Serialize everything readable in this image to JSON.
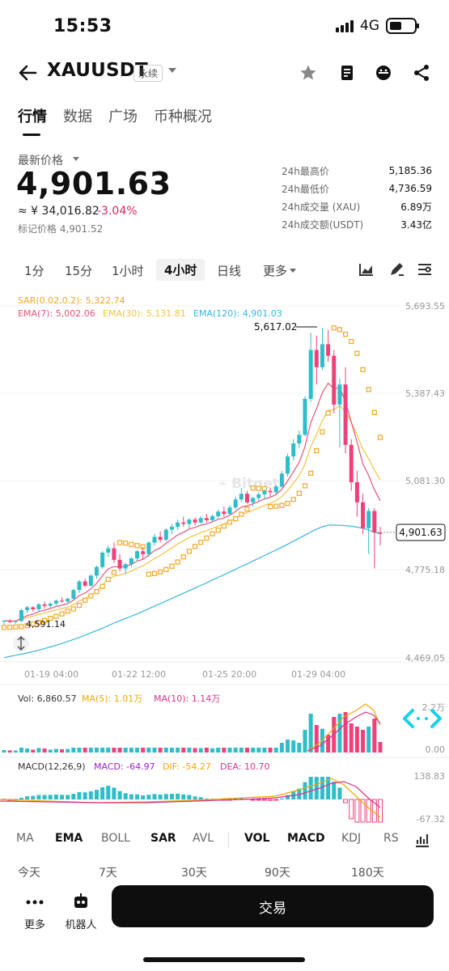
{
  "status": {
    "time": "15:53",
    "network": "4G"
  },
  "header": {
    "symbol": "XAUUSDT",
    "badge": "永续"
  },
  "tabs": [
    "行情",
    "数据",
    "广场",
    "币种概况"
  ],
  "ticker": {
    "label": "最新价格",
    "price": "4,901.63",
    "cny": "≈ ¥ 34,016.82",
    "change": "-3.04%",
    "mark": "标记价格 4,901.52",
    "stats": [
      {
        "k": "24h最高价",
        "v": "5,185.36"
      },
      {
        "k": "24h最低价",
        "v": "4,736.59"
      },
      {
        "k": "24h成交量 (XAU)",
        "v": "6.89万"
      },
      {
        "k": "24h成交额(USDT)",
        "v": "3.43亿"
      }
    ]
  },
  "intervals": [
    "1分",
    "15分",
    "1小时",
    "4小时",
    "日线",
    "更多"
  ],
  "chart": {
    "sar_label": "SAR(0.02,0.2): 5,322.74",
    "ema7_label": "EMA(7): 5,002.06",
    "ema30_label": "EMA(30): 5,131.81",
    "ema120_label": "EMA(120): 4,901.03",
    "high_marker": "5,617.02",
    "low_marker": "4,591.14",
    "current_tag": "4,901.63",
    "y_ticks": [
      "5,693.55",
      "5,387.43",
      "5,081.30",
      "4,775.18",
      "4,469.05"
    ],
    "x_ticks": [
      "01-19 04:00",
      "01-22 12:00",
      "01-25 20:00",
      "01-29 04:00"
    ],
    "vol_label": "Vol: 6,860.57",
    "vol_ma5": "MA(5): 1.01万",
    "vol_ma10": "MA(10): 1.14万",
    "vol_ticks": [
      "2.2万",
      "0.00"
    ],
    "macd_label": "MACD(12,26,9)",
    "macd_val": "MACD: -64.97",
    "dif_val": "DIF: -54.27",
    "dea_val": "DEA: 10.70",
    "macd_ticks": [
      "138.83",
      "-67.32"
    ],
    "colors": {
      "up": "#2ebdc9",
      "down": "#f0407a",
      "sar": "#f5a623",
      "ema7": "#e8547a",
      "ema30": "#f5c242",
      "ema120": "#35b6e0"
    }
  },
  "chart_data": {
    "type": "candlestick",
    "y_range": [
      4469.05,
      5693.55
    ],
    "candles": [
      [
        4595,
        4600,
        4585,
        4598
      ],
      [
        4598,
        4603,
        4590,
        4594
      ],
      [
        4594,
        4600,
        4588,
        4597
      ],
      [
        4597,
        4640,
        4594,
        4635
      ],
      [
        4635,
        4650,
        4625,
        4645
      ],
      [
        4645,
        4648,
        4630,
        4638
      ],
      [
        4638,
        4660,
        4632,
        4655
      ],
      [
        4655,
        4665,
        4640,
        4650
      ],
      [
        4650,
        4662,
        4644,
        4658
      ],
      [
        4658,
        4672,
        4650,
        4668
      ],
      [
        4668,
        4680,
        4660,
        4665
      ],
      [
        4665,
        4678,
        4656,
        4675
      ],
      [
        4675,
        4710,
        4670,
        4705
      ],
      [
        4705,
        4740,
        4695,
        4735
      ],
      [
        4735,
        4745,
        4715,
        4720
      ],
      [
        4720,
        4760,
        4718,
        4755
      ],
      [
        4755,
        4790,
        4745,
        4785
      ],
      [
        4785,
        4840,
        4780,
        4835
      ],
      [
        4835,
        4860,
        4820,
        4850
      ],
      [
        4850,
        4870,
        4800,
        4810
      ],
      [
        4810,
        4830,
        4770,
        4780
      ],
      [
        4780,
        4800,
        4760,
        4795
      ],
      [
        4795,
        4820,
        4785,
        4815
      ],
      [
        4815,
        4845,
        4805,
        4840
      ],
      [
        4840,
        4855,
        4810,
        4830
      ],
      [
        4830,
        4875,
        4820,
        4870
      ],
      [
        4870,
        4900,
        4860,
        4890
      ],
      [
        4890,
        4910,
        4870,
        4880
      ],
      [
        4880,
        4920,
        4875,
        4915
      ],
      [
        4915,
        4935,
        4900,
        4925
      ],
      [
        4925,
        4950,
        4915,
        4940
      ],
      [
        4940,
        4960,
        4925,
        4935
      ],
      [
        4935,
        4955,
        4920,
        4950
      ],
      [
        4950,
        4958,
        4930,
        4940
      ],
      [
        4940,
        4962,
        4935,
        4955
      ],
      [
        4955,
        4970,
        4940,
        4948
      ],
      [
        4948,
        4968,
        4942,
        4962
      ],
      [
        4962,
        4985,
        4955,
        4978
      ],
      [
        4978,
        4995,
        4960,
        4970
      ],
      [
        4970,
        5000,
        4965,
        4992
      ],
      [
        4992,
        5030,
        4985,
        5020
      ],
      [
        5020,
        5060,
        5010,
        5040
      ],
      [
        5040,
        5050,
        5005,
        5010
      ],
      [
        5010,
        5030,
        4995,
        5025
      ],
      [
        5025,
        5045,
        5015,
        5038
      ],
      [
        5038,
        5055,
        5020,
        5050
      ],
      [
        5050,
        5060,
        5030,
        5045
      ],
      [
        5045,
        5070,
        5040,
        5065
      ],
      [
        5065,
        5120,
        5060,
        5110
      ],
      [
        5110,
        5180,
        5100,
        5170
      ],
      [
        5170,
        5230,
        5155,
        5215
      ],
      [
        5215,
        5260,
        5200,
        5245
      ],
      [
        5245,
        5380,
        5240,
        5370
      ],
      [
        5370,
        5600,
        5360,
        5540
      ],
      [
        5540,
        5590,
        5420,
        5480
      ],
      [
        5480,
        5617,
        5470,
        5560
      ],
      [
        5560,
        5610,
        5500,
        5520
      ],
      [
        5520,
        5540,
        5320,
        5350
      ],
      [
        5350,
        5440,
        5200,
        5420
      ],
      [
        5420,
        5480,
        5180,
        5210
      ],
      [
        5210,
        5230,
        5050,
        5080
      ],
      [
        5080,
        5120,
        4960,
        5010
      ],
      [
        5010,
        5040,
        4900,
        4920
      ],
      [
        4920,
        4990,
        4830,
        4980
      ],
      [
        4980,
        4990,
        4780,
        4905
      ],
      [
        4905,
        4925,
        4860,
        4901
      ]
    ],
    "ema120": [
      4470,
      4474,
      4478,
      4482,
      4486,
      4491,
      4496,
      4501,
      4507,
      4513,
      4519,
      4526,
      4533,
      4540,
      4548,
      4556,
      4564,
      4572,
      4581,
      4590,
      4598,
      4606,
      4614,
      4622,
      4631,
      4640,
      4649,
      4658,
      4667,
      4676,
      4685,
      4694,
      4703,
      4712,
      4721,
      4730,
      4740,
      4749,
      4758,
      4768,
      4777,
      4787,
      4796,
      4806,
      4815,
      4825,
      4835,
      4844,
      4854,
      4864,
      4875,
      4885,
      4896,
      4907,
      4917,
      4925,
      4930,
      4931,
      4930,
      4929,
      4927,
      4924,
      4920,
      4914,
      4906,
      4901
    ]
  }
}
